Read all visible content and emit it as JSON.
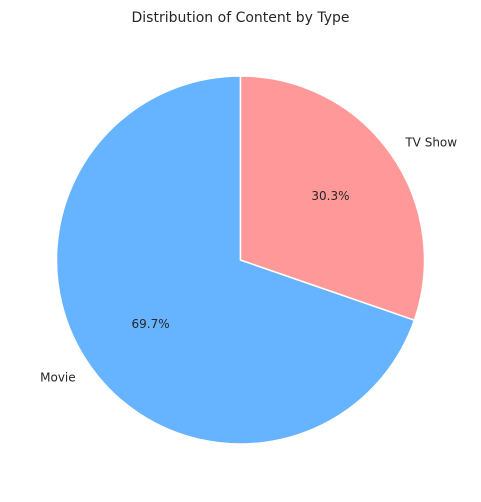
{
  "chart_data": {
    "type": "pie",
    "title": "Distribution of Content by Type",
    "categories": [
      "Movie",
      "TV Show"
    ],
    "values": [
      69.7,
      30.3
    ],
    "percent_labels": [
      "69.7%",
      "30.3%"
    ],
    "colors": [
      "#66b3ff",
      "#ff9999"
    ],
    "start_angle_deg": 90,
    "direction": "counterclockwise",
    "legend": "none"
  }
}
